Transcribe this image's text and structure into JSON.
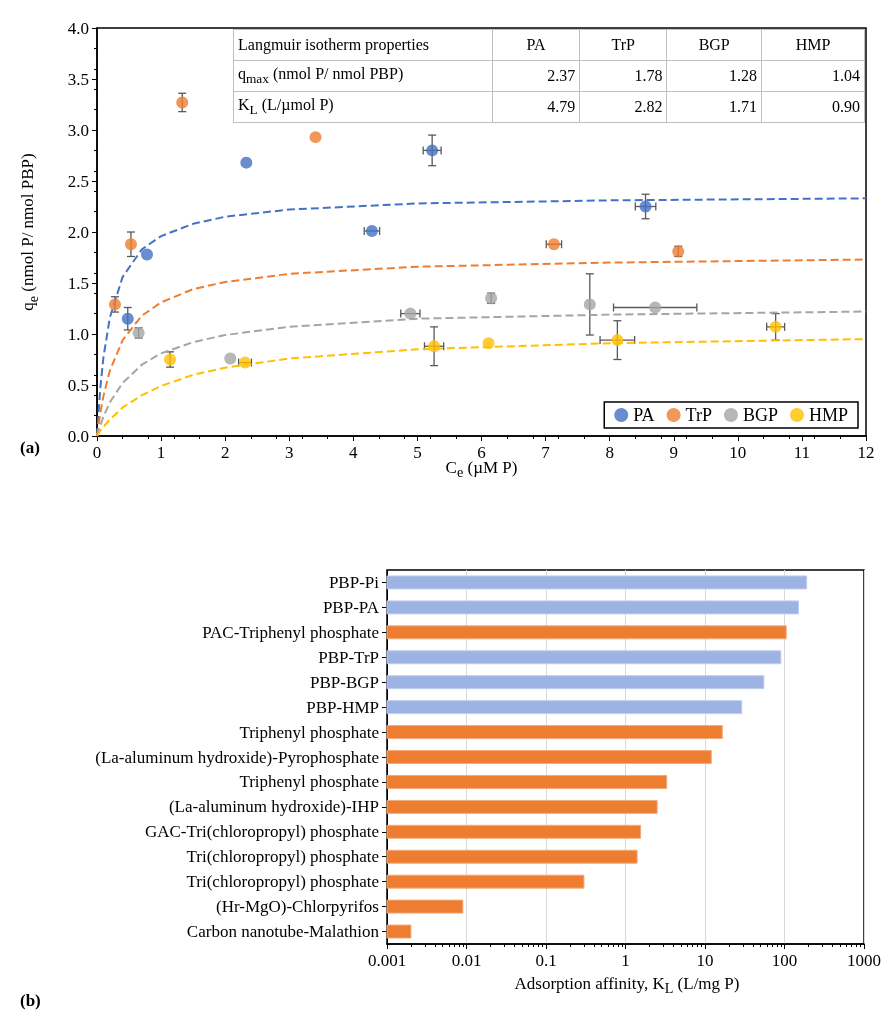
{
  "chart_data": [
    {
      "type": "scatter",
      "title": "(a)",
      "xlabel": "C$_{e}$ (µM P)",
      "ylabel": "q$_{e}$ (nmol P/ nmol PBP)",
      "xlim": [
        0,
        12
      ],
      "xticks": [
        0,
        1,
        2,
        3,
        4,
        5,
        6,
        7,
        8,
        9,
        10,
        11,
        12
      ],
      "ylim": [
        0,
        4
      ],
      "yticks": [
        {
          "value": 0,
          "label": "0.0"
        },
        {
          "value": 0.5,
          "label": "0.5"
        },
        {
          "value": 1,
          "label": "1.0"
        },
        {
          "value": 1.5,
          "label": "1.5"
        },
        {
          "value": 2,
          "label": "2.0"
        },
        {
          "value": 2.5,
          "label": "2.5"
        },
        {
          "value": 3,
          "label": "3.0"
        },
        {
          "value": 3.5,
          "label": "3.5"
        },
        {
          "value": 4,
          "label": "4.0"
        }
      ],
      "legend": "bottom right",
      "marker": "circle",
      "annotations": [
        "Langmuir isotherm properties",
        "PA",
        "TrP",
        "BGP",
        "HMP",
        "q$_{max}$ (nmol P/ nmol PBP)",
        "2.37",
        "1.78",
        "1.28",
        "1.04",
        "K$_{L}$ (L/µmol P)",
        "4.79",
        "2.82",
        "1.71",
        "0.90"
      ],
      "series": [
        {
          "name": "PA",
          "color": "#4472c4",
          "x": [
            0.48,
            0.78,
            2.33,
            4.29,
            5.23,
            8.56
          ],
          "values": [
            1.15,
            1.78,
            2.68,
            2.01,
            2.8,
            2.25
          ],
          "errors": [
            0.11,
            null,
            null,
            null,
            0.15,
            0.12
          ],
          "xerrors": [
            null,
            null,
            null,
            0.12,
            0.14,
            0.16
          ]
        },
        {
          "name": "TrP",
          "color": "#ed7d31",
          "x": [
            0.28,
            0.53,
            1.33,
            3.41,
            7.13,
            9.07
          ],
          "values": [
            1.29,
            1.88,
            3.27,
            2.93,
            1.88,
            1.81
          ],
          "errors": [
            0.075,
            0.12,
            0.09,
            null,
            null,
            0.05
          ],
          "xerrors": [
            null,
            null,
            null,
            null,
            0.12,
            null
          ]
        },
        {
          "name": "BGP",
          "color": "#a5a5a5",
          "x": [
            0.65,
            2.08,
            4.89,
            6.15,
            7.69,
            8.71
          ],
          "values": [
            1.01,
            0.76,
            1.2,
            1.35,
            1.29,
            1.26
          ],
          "errors": [
            0.05,
            null,
            null,
            0.05,
            0.3,
            null
          ],
          "xerrors": [
            null,
            null,
            0.15,
            null,
            null,
            0.65
          ]
        },
        {
          "name": "HMP",
          "color": "#ffc000",
          "x": [
            1.14,
            2.31,
            5.26,
            6.11,
            8.12,
            10.59
          ],
          "values": [
            0.75,
            0.72,
            0.88,
            0.91,
            0.94,
            1.07
          ],
          "errors": [
            0.075,
            null,
            0.19,
            null,
            0.19,
            0.13
          ],
          "xerrors": [
            null,
            0.1,
            0.15,
            null,
            0.27,
            0.14
          ]
        },
        {
          "type": "line",
          "color": "#4472c4",
          "line_style": "dashed",
          "marker": "none",
          "x": [
            0,
            0.05,
            0.1,
            0.2,
            0.4,
            0.7,
            1,
            1.5,
            2,
            3,
            5,
            8,
            12
          ],
          "values": [
            0,
            0.46,
            0.77,
            1.16,
            1.56,
            1.83,
            1.96,
            2.08,
            2.15,
            2.22,
            2.28,
            2.31,
            2.33
          ]
        },
        {
          "type": "line",
          "color": "#ed7d31",
          "line_style": "dashed",
          "marker": "none",
          "x": [
            0,
            0.05,
            0.1,
            0.2,
            0.4,
            0.7,
            1,
            1.5,
            2,
            3,
            5,
            8,
            12
          ],
          "values": [
            0,
            0.22,
            0.39,
            0.64,
            0.94,
            1.18,
            1.31,
            1.44,
            1.51,
            1.59,
            1.66,
            1.7,
            1.73
          ]
        },
        {
          "type": "line",
          "color": "#a5a5a5",
          "line_style": "dashed",
          "marker": "none",
          "x": [
            0,
            0.05,
            0.1,
            0.2,
            0.4,
            0.7,
            1,
            1.5,
            2,
            3,
            5,
            8,
            12
          ],
          "values": [
            0,
            0.1,
            0.19,
            0.33,
            0.52,
            0.7,
            0.81,
            0.92,
            0.99,
            1.07,
            1.15,
            1.19,
            1.22
          ]
        },
        {
          "type": "line",
          "color": "#ffc000",
          "line_style": "dashed",
          "marker": "none",
          "x": [
            0,
            0.05,
            0.1,
            0.2,
            0.4,
            0.7,
            1,
            1.5,
            2,
            3,
            5,
            8,
            12
          ],
          "values": [
            0,
            0.05,
            0.09,
            0.16,
            0.28,
            0.4,
            0.49,
            0.6,
            0.67,
            0.76,
            0.85,
            0.91,
            0.95
          ]
        }
      ]
    },
    {
      "type": "bar",
      "title": "(b)",
      "orientation": "horizontal",
      "xlabel": "Adsorption affinity, K$_{L}$ (L/mg P)",
      "log": "x",
      "grid": "x",
      "xlim": [
        0.001,
        1000
      ],
      "xticks": [
        0.001,
        0.01,
        0.1,
        1,
        10,
        100,
        1000
      ],
      "categories": [
        "PBP-Pi",
        "PBP-PA",
        "PAC-Triphenyl phosphate",
        "PBP-TrP",
        "PBP-BGP",
        "PBP-HMP",
        "Triphenyl phosphate",
        "(La-aluminum hydroxide)-Pyrophosphate",
        "Triphenyl phosphate",
        "(La-aluminum hydroxide)-IHP",
        "GAC-Tri(chloropropyl) phosphate",
        "Tri(chloropropyl) phosphate",
        "Tri(chloropropyl) phosphate",
        "(Hr-MgO)-Chlorpyrifos",
        "Carbon nanotube-Malathion"
      ],
      "values": [
        190,
        150,
        105,
        90,
        55,
        29,
        16.5,
        12,
        3.3,
        2.5,
        1.55,
        1.4,
        0.3,
        0.009,
        0.002
      ],
      "colors": [
        "#9db3e3",
        "#9db3e3",
        "#ed7d31",
        "#9db3e3",
        "#9db3e3",
        "#9db3e3",
        "#ed7d31",
        "#ed7d31",
        "#ed7d31",
        "#ed7d31",
        "#ed7d31",
        "#ed7d31",
        "#ed7d31",
        "#ed7d31",
        "#ed7d31"
      ]
    }
  ]
}
